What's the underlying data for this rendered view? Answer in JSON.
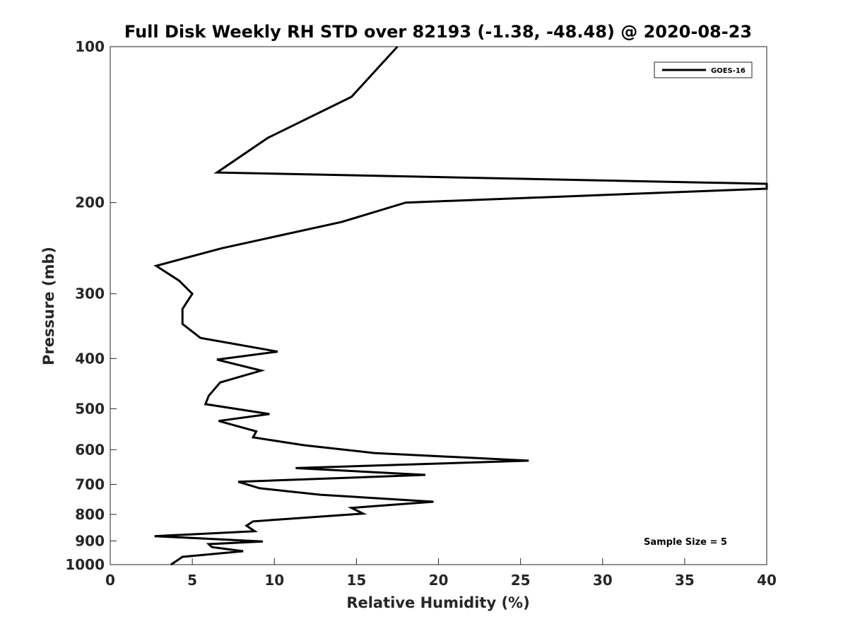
{
  "chart_data": {
    "type": "line",
    "title": "Full Disk Weekly RH STD over 82193 (-1.38, -48.48) @ 2020-08-23",
    "xlabel": "Relative Humidity (%)",
    "ylabel": "Pressure (mb)",
    "xlim": [
      0,
      40
    ],
    "ylim": [
      100,
      1000
    ],
    "yscale": "log",
    "yaxis_inverted": true,
    "grid": false,
    "x_ticks": [
      "0",
      "5",
      "10",
      "15",
      "20",
      "25",
      "30",
      "35",
      "40"
    ],
    "y_ticks": [
      "100",
      "200",
      "300",
      "400",
      "500",
      "600",
      "700",
      "800",
      "900",
      "1000"
    ],
    "legend": {
      "location": "top-right",
      "entries": [
        "GOES-16"
      ]
    },
    "annotation": "Sample Size = 5",
    "series": [
      {
        "name": "GOES-16",
        "color": "#000000",
        "points": [
          [
            17.5,
            100
          ],
          [
            14.7,
            125
          ],
          [
            9.6,
            150
          ],
          [
            6.5,
            175
          ],
          [
            40,
            184
          ],
          [
            40,
            188
          ],
          [
            18.0,
            200
          ],
          [
            14.1,
            218
          ],
          [
            6.8,
            245
          ],
          [
            2.8,
            265
          ],
          [
            4.2,
            283
          ],
          [
            5.0,
            300
          ],
          [
            4.4,
            321
          ],
          [
            4.4,
            343
          ],
          [
            5.5,
            365
          ],
          [
            10.2,
            388
          ],
          [
            6.5,
            402
          ],
          [
            9.2,
            422
          ],
          [
            6.7,
            445
          ],
          [
            6.0,
            472
          ],
          [
            5.8,
            490
          ],
          [
            9.7,
            512
          ],
          [
            6.6,
            528
          ],
          [
            8.9,
            553
          ],
          [
            8.7,
            568
          ],
          [
            11.8,
            588
          ],
          [
            16.1,
            609
          ],
          [
            25.5,
            630
          ],
          [
            11.3,
            651
          ],
          [
            19.2,
            671
          ],
          [
            7.8,
            692
          ],
          [
            9.1,
            712
          ],
          [
            12.8,
            733
          ],
          [
            19.7,
            756
          ],
          [
            14.7,
            777
          ],
          [
            15.4,
            797
          ],
          [
            8.7,
            825
          ],
          [
            8.3,
            841
          ],
          [
            8.8,
            862
          ],
          [
            2.7,
            881
          ],
          [
            9.3,
            902
          ],
          [
            6.0,
            913
          ],
          [
            6.2,
            925
          ],
          [
            8.1,
            942
          ],
          [
            4.4,
            966
          ],
          [
            3.7,
            1000
          ]
        ]
      }
    ]
  }
}
